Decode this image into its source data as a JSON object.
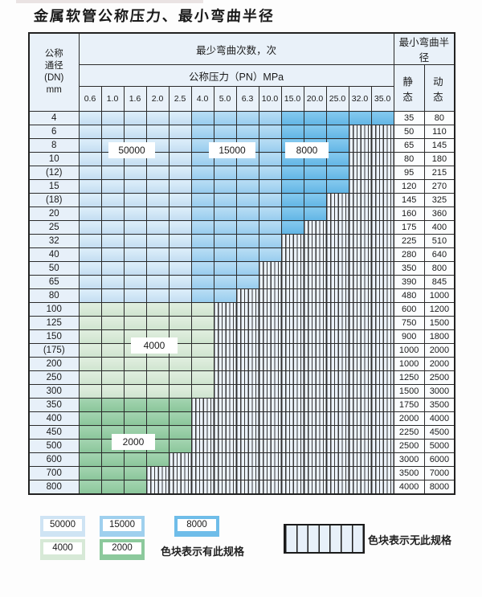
{
  "page": {
    "title": "金属软管公称压力、最小弯曲半径"
  },
  "table": {
    "header": {
      "dn_lines": [
        "公称",
        "通径",
        "(DN)",
        "mm"
      ],
      "bend_cycles_label": "最少弯曲次数，次",
      "bend_radius_label": "最小弯曲半径",
      "pressure_label": "公称压力（PN）MPa",
      "static_label": "静 态",
      "dynamic_label": "动 态",
      "pressure_columns": [
        "0.6",
        "1.0",
        "1.6",
        "2.0",
        "2.5",
        "4.0",
        "5.0",
        "6.3",
        "10.0",
        "15.0",
        "20.0",
        "25.0",
        "32.0",
        "35.0"
      ]
    },
    "blue_zones": [
      {
        "cycles": "50000",
        "columns": [
          "0.6",
          "2.5"
        ]
      },
      {
        "cycles": "15000",
        "columns": [
          "4.0",
          "10.0"
        ]
      },
      {
        "cycles": "8000",
        "columns": [
          "15.0",
          "35.0"
        ]
      }
    ],
    "rows": [
      {
        "dn": "4",
        "zone": "blue",
        "max_pressure": "35.0",
        "static": "35",
        "dynamic": "80"
      },
      {
        "dn": "6",
        "zone": "blue",
        "max_pressure": "25.0",
        "static": "50",
        "dynamic": "110"
      },
      {
        "dn": "8",
        "zone": "blue",
        "max_pressure": "25.0",
        "static": "65",
        "dynamic": "145"
      },
      {
        "dn": "10",
        "zone": "blue",
        "max_pressure": "25.0",
        "static": "80",
        "dynamic": "180"
      },
      {
        "dn": "(12)",
        "zone": "blue",
        "max_pressure": "25.0",
        "static": "95",
        "dynamic": "215"
      },
      {
        "dn": "15",
        "zone": "blue",
        "max_pressure": "25.0",
        "static": "120",
        "dynamic": "270"
      },
      {
        "dn": "(18)",
        "zone": "blue",
        "max_pressure": "20.0",
        "static": "145",
        "dynamic": "325"
      },
      {
        "dn": "20",
        "zone": "blue",
        "max_pressure": "20.0",
        "static": "160",
        "dynamic": "360"
      },
      {
        "dn": "25",
        "zone": "blue",
        "max_pressure": "15.0",
        "static": "175",
        "dynamic": "400"
      },
      {
        "dn": "32",
        "zone": "blue",
        "max_pressure": "10.0",
        "static": "225",
        "dynamic": "510"
      },
      {
        "dn": "40",
        "zone": "blue",
        "max_pressure": "10.0",
        "static": "280",
        "dynamic": "640"
      },
      {
        "dn": "50",
        "zone": "blue",
        "max_pressure": "6.3",
        "static": "350",
        "dynamic": "800"
      },
      {
        "dn": "65",
        "zone": "blue",
        "max_pressure": "6.3",
        "static": "390",
        "dynamic": "845"
      },
      {
        "dn": "80",
        "zone": "blue",
        "max_pressure": "5.0",
        "static": "480",
        "dynamic": "1000"
      },
      {
        "dn": "100",
        "zone": "4000",
        "max_pressure": "4.0",
        "static": "600",
        "dynamic": "1200"
      },
      {
        "dn": "125",
        "zone": "4000",
        "max_pressure": "4.0",
        "static": "750",
        "dynamic": "1500"
      },
      {
        "dn": "150",
        "zone": "4000",
        "max_pressure": "4.0",
        "static": "900",
        "dynamic": "1800"
      },
      {
        "dn": "(175)",
        "zone": "4000",
        "max_pressure": "4.0",
        "static": "1000",
        "dynamic": "2000"
      },
      {
        "dn": "200",
        "zone": "4000",
        "max_pressure": "4.0",
        "static": "1000",
        "dynamic": "2000"
      },
      {
        "dn": "250",
        "zone": "4000",
        "max_pressure": "4.0",
        "static": "1250",
        "dynamic": "2500"
      },
      {
        "dn": "300",
        "zone": "4000",
        "max_pressure": "4.0",
        "static": "1500",
        "dynamic": "3000"
      },
      {
        "dn": "350",
        "zone": "2000",
        "max_pressure": "2.5",
        "static": "1750",
        "dynamic": "3500"
      },
      {
        "dn": "400",
        "zone": "2000",
        "max_pressure": "2.5",
        "static": "2000",
        "dynamic": "4000"
      },
      {
        "dn": "450",
        "zone": "2000",
        "max_pressure": "2.5",
        "static": "2250",
        "dynamic": "4500"
      },
      {
        "dn": "500",
        "zone": "2000",
        "max_pressure": "2.5",
        "static": "2500",
        "dynamic": "5000"
      },
      {
        "dn": "600",
        "zone": "2000",
        "max_pressure": "2.0",
        "static": "3000",
        "dynamic": "6000"
      },
      {
        "dn": "700",
        "zone": "2000",
        "max_pressure": "1.6",
        "static": "3500",
        "dynamic": "7000"
      },
      {
        "dn": "800",
        "zone": "2000",
        "max_pressure": "1.6",
        "static": "4000",
        "dynamic": "8000"
      }
    ]
  },
  "overlays": {
    "v50000": "50000",
    "v15000": "15000",
    "v8000": "8000",
    "v4000": "4000",
    "v2000": "2000"
  },
  "legend": {
    "items": [
      {
        "value": "50000",
        "color": "#cfe4f4"
      },
      {
        "value": "15000",
        "color": "#9fd0ee"
      },
      {
        "value": "8000",
        "color": "#6fbde9"
      },
      {
        "value": "4000",
        "color": "#d7e9d7"
      },
      {
        "value": "2000",
        "color": "#8cc99c"
      }
    ],
    "has_spec_text": "色块表示有此规格",
    "no_spec_text": "色块表示无此规格"
  },
  "colors": {
    "blue_50000": "#cfe4f4",
    "blue_15000": "#9fd0ee",
    "blue_8000": "#6fbde9",
    "green_4000": "#d7e9d7",
    "green_2000": "#8cc99c",
    "hatch_background": "#ebf2fa",
    "grid_line": "#2b2b2b"
  }
}
